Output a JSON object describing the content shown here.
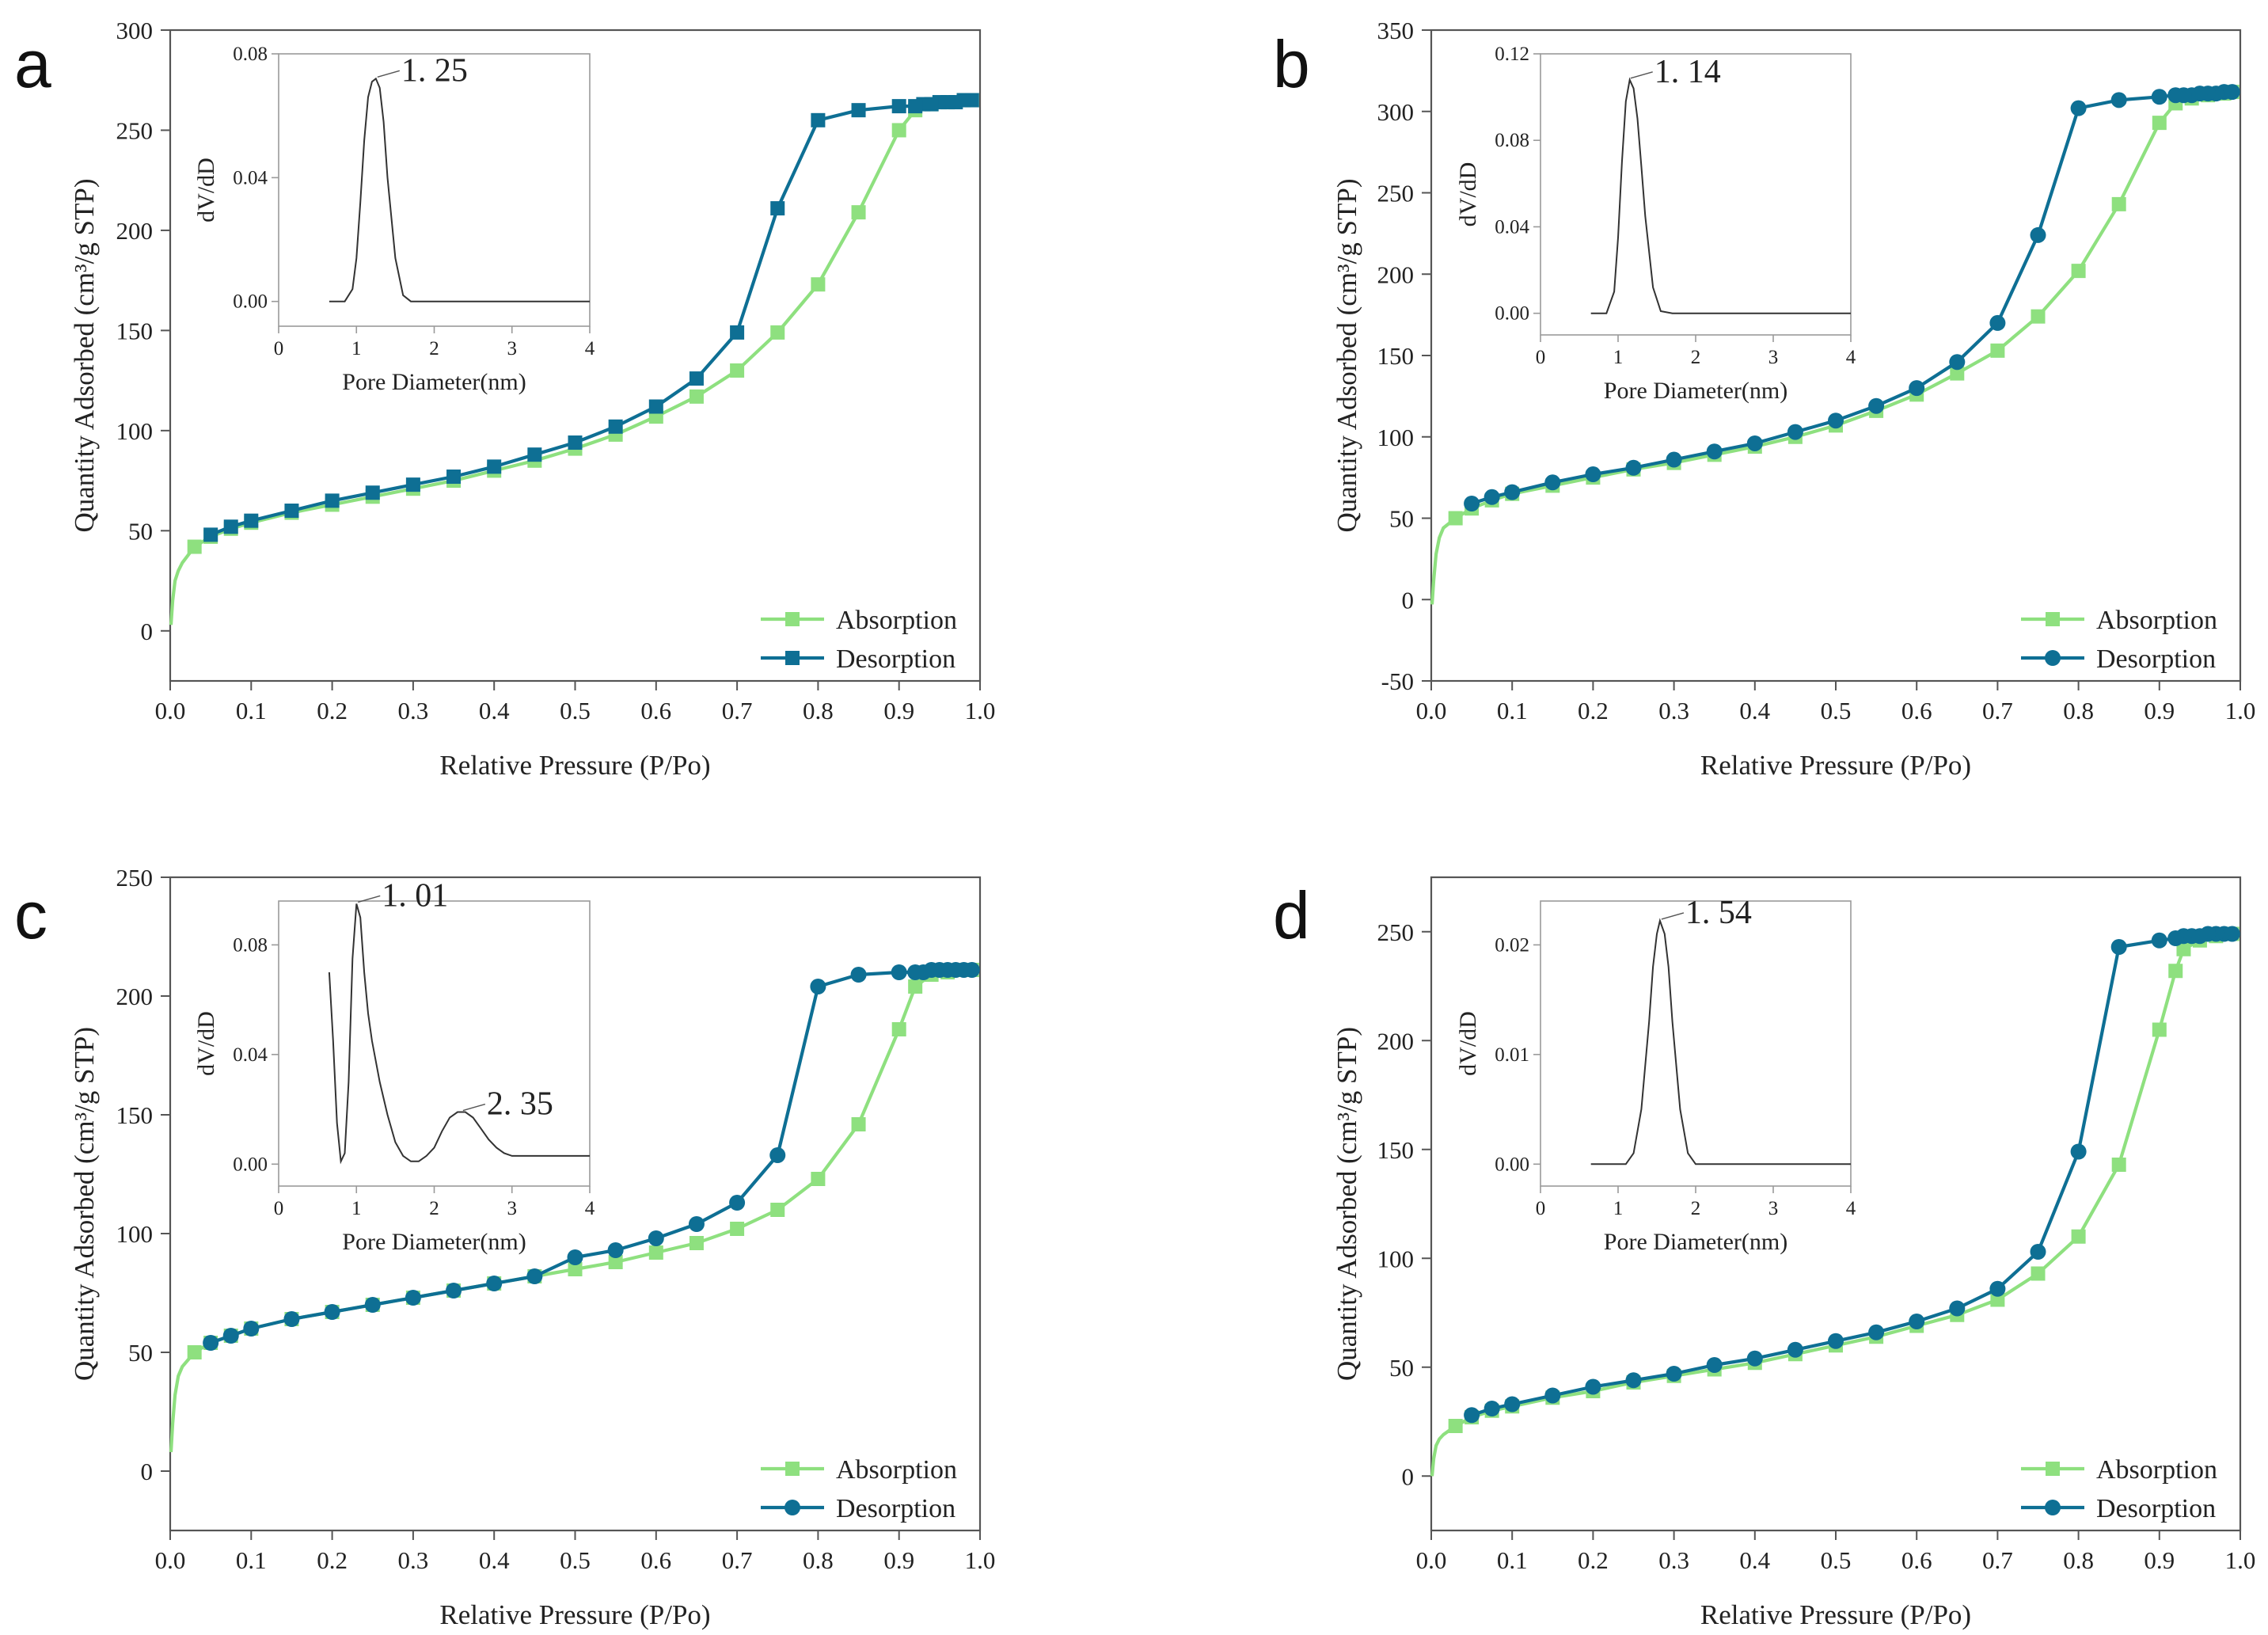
{
  "chart_data": [
    {
      "id": "a",
      "panel_label": "a",
      "type": "line",
      "xlabel": "Relative Pressure (P/Po)",
      "ylabel": "Quantity Adsorbed (cm³/g STP)",
      "xlim": [
        0,
        1.0
      ],
      "ylim": [
        -25,
        300
      ],
      "xticks": [
        "0.0",
        "0.1",
        "0.2",
        "0.3",
        "0.4",
        "0.5",
        "0.6",
        "0.7",
        "0.8",
        "0.9",
        "1.0"
      ],
      "yticks": [
        "0",
        "50",
        "100",
        "150",
        "200",
        "250",
        "300"
      ],
      "legend_position": "bottom-right",
      "desorption_marker": "square",
      "series": [
        {
          "name": "Absorption",
          "color": "#8ee07f",
          "x": [
            0.001,
            0.003,
            0.006,
            0.01,
            0.015,
            0.03,
            0.05,
            0.075,
            0.1,
            0.15,
            0.2,
            0.25,
            0.3,
            0.35,
            0.4,
            0.45,
            0.5,
            0.55,
            0.6,
            0.65,
            0.7,
            0.75,
            0.8,
            0.85,
            0.9,
            0.92,
            0.94,
            0.96,
            0.98,
            0.99
          ],
          "y": [
            3,
            15,
            25,
            30,
            34,
            42,
            47,
            51,
            54,
            59,
            63,
            67,
            71,
            75,
            80,
            85,
            91,
            98,
            107,
            117,
            130,
            149,
            173,
            209,
            250,
            260,
            263,
            264,
            265,
            265
          ]
        },
        {
          "name": "Desorption",
          "color": "#0e6f94",
          "x": [
            0.99,
            0.98,
            0.97,
            0.96,
            0.95,
            0.94,
            0.93,
            0.92,
            0.9,
            0.85,
            0.8,
            0.75,
            0.7,
            0.65,
            0.6,
            0.55,
            0.5,
            0.45,
            0.4,
            0.35,
            0.3,
            0.25,
            0.2,
            0.15,
            0.1,
            0.075,
            0.05
          ],
          "y": [
            265,
            265,
            264,
            264,
            264,
            263,
            263,
            262,
            262,
            260,
            255,
            211,
            149,
            126,
            112,
            102,
            94,
            88,
            82,
            77,
            73,
            69,
            65,
            60,
            55,
            52,
            48
          ]
        }
      ],
      "inset": {
        "xlabel": "Pore Diameter(nm)",
        "ylabel": "dV/dD",
        "xlim": [
          0,
          4
        ],
        "ylim": [
          -0.008,
          0.08
        ],
        "xticks": [
          "0",
          "1",
          "2",
          "3",
          "4"
        ],
        "yticks": [
          "0.00",
          "0.04",
          "0.08"
        ],
        "ytick_values": [
          0,
          0.04,
          0.08
        ],
        "x": [
          0.65,
          0.85,
          0.95,
          1.0,
          1.05,
          1.1,
          1.15,
          1.2,
          1.25,
          1.3,
          1.35,
          1.4,
          1.5,
          1.6,
          1.7,
          2.0,
          3.0,
          4.0
        ],
        "y": [
          0,
          0,
          0.004,
          0.014,
          0.032,
          0.052,
          0.066,
          0.071,
          0.072,
          0.069,
          0.058,
          0.04,
          0.014,
          0.002,
          0,
          0,
          0,
          0
        ],
        "annotations": [
          {
            "text": "1. 25",
            "x": 1.25,
            "y": 0.072
          }
        ]
      }
    },
    {
      "id": "b",
      "panel_label": "b",
      "type": "line",
      "xlabel": "Relative Pressure (P/Po)",
      "ylabel": "Quantity Adsorbed (cm³/g STP)",
      "xlim": [
        0,
        1.0
      ],
      "ylim": [
        -50,
        350
      ],
      "xticks": [
        "0.0",
        "0.1",
        "0.2",
        "0.3",
        "0.4",
        "0.5",
        "0.6",
        "0.7",
        "0.8",
        "0.9",
        "1.0"
      ],
      "yticks": [
        "-50",
        "0",
        "50",
        "100",
        "150",
        "200",
        "250",
        "300",
        "350"
      ],
      "legend_position": "bottom-right",
      "desorption_marker": "circle",
      "series": [
        {
          "name": "Absorption",
          "color": "#8ee07f",
          "x": [
            0.001,
            0.003,
            0.006,
            0.01,
            0.015,
            0.03,
            0.05,
            0.075,
            0.1,
            0.15,
            0.2,
            0.25,
            0.3,
            0.35,
            0.4,
            0.45,
            0.5,
            0.55,
            0.6,
            0.65,
            0.7,
            0.75,
            0.8,
            0.85,
            0.9,
            0.92,
            0.94,
            0.96,
            0.98,
            0.99
          ],
          "y": [
            -3,
            12,
            28,
            38,
            44,
            50,
            56,
            61,
            65,
            70,
            75,
            80,
            84,
            89,
            94,
            100,
            107,
            116,
            126,
            139,
            153,
            174,
            202,
            243,
            293,
            305,
            308,
            310,
            311,
            312
          ]
        },
        {
          "name": "Desorption",
          "color": "#0e6f94",
          "x": [
            0.99,
            0.98,
            0.97,
            0.96,
            0.95,
            0.94,
            0.93,
            0.92,
            0.9,
            0.85,
            0.8,
            0.75,
            0.7,
            0.65,
            0.6,
            0.55,
            0.5,
            0.45,
            0.4,
            0.35,
            0.3,
            0.25,
            0.2,
            0.15,
            0.1,
            0.075,
            0.05
          ],
          "y": [
            312,
            312,
            311,
            311,
            311,
            310,
            310,
            310,
            309,
            307,
            302,
            224,
            170,
            146,
            130,
            119,
            110,
            103,
            96,
            91,
            86,
            81,
            77,
            72,
            66,
            63,
            59
          ]
        }
      ],
      "inset": {
        "xlabel": "Pore Diameter(nm)",
        "ylabel": "dV/dD",
        "xlim": [
          0,
          4
        ],
        "ylim": [
          -0.01,
          0.12
        ],
        "xticks": [
          "0",
          "1",
          "2",
          "3",
          "4"
        ],
        "yticks": [
          "0.00",
          "0.04",
          "0.08",
          "0.12"
        ],
        "ytick_values": [
          0,
          0.04,
          0.08,
          0.12
        ],
        "x": [
          0.65,
          0.85,
          0.95,
          1.0,
          1.05,
          1.1,
          1.15,
          1.2,
          1.25,
          1.3,
          1.35,
          1.45,
          1.55,
          1.7,
          2.0,
          3.0,
          4.0
        ],
        "y": [
          0,
          0,
          0.01,
          0.035,
          0.07,
          0.098,
          0.108,
          0.104,
          0.09,
          0.068,
          0.045,
          0.012,
          0.001,
          0,
          0,
          0,
          0
        ],
        "annotations": [
          {
            "text": "1. 14",
            "x": 1.14,
            "y": 0.108
          }
        ]
      }
    },
    {
      "id": "c",
      "panel_label": "c",
      "type": "line",
      "xlabel": "Relative Pressure (P/Po)",
      "ylabel": "Quantity Adsorbed (cm³/g STP)",
      "xlim": [
        0,
        1.0
      ],
      "ylim": [
        -25,
        250
      ],
      "xticks": [
        "0.0",
        "0.1",
        "0.2",
        "0.3",
        "0.4",
        "0.5",
        "0.6",
        "0.7",
        "0.8",
        "0.9",
        "1.0"
      ],
      "yticks": [
        "0",
        "50",
        "100",
        "150",
        "200",
        "250"
      ],
      "legend_position": "bottom-right",
      "desorption_marker": "circle",
      "series": [
        {
          "name": "Absorption",
          "color": "#8ee07f",
          "x": [
            0.001,
            0.003,
            0.006,
            0.01,
            0.015,
            0.03,
            0.05,
            0.075,
            0.1,
            0.15,
            0.2,
            0.25,
            0.3,
            0.35,
            0.4,
            0.45,
            0.5,
            0.55,
            0.6,
            0.65,
            0.7,
            0.75,
            0.8,
            0.85,
            0.9,
            0.92,
            0.94,
            0.96,
            0.98,
            0.99
          ],
          "y": [
            8,
            20,
            32,
            40,
            44,
            50,
            54,
            57,
            60,
            64,
            67,
            70,
            73,
            76,
            79,
            82,
            85,
            88,
            92,
            96,
            102,
            110,
            123,
            146,
            186,
            204,
            209,
            210,
            211,
            211
          ]
        },
        {
          "name": "Desorption",
          "color": "#0e6f94",
          "x": [
            0.99,
            0.98,
            0.97,
            0.96,
            0.95,
            0.94,
            0.93,
            0.92,
            0.9,
            0.85,
            0.8,
            0.75,
            0.7,
            0.65,
            0.6,
            0.55,
            0.5,
            0.45,
            0.4,
            0.35,
            0.3,
            0.25,
            0.2,
            0.15,
            0.1,
            0.075,
            0.05
          ],
          "y": [
            211,
            211,
            211,
            211,
            211,
            211,
            210,
            210,
            210,
            209,
            204,
            133,
            113,
            104,
            98,
            93,
            90,
            82,
            79,
            76,
            73,
            70,
            67,
            64,
            60,
            57,
            54
          ]
        }
      ],
      "inset": {
        "xlabel": "Pore Diameter(nm)",
        "ylabel": "dV/dD",
        "xlim": [
          0,
          4
        ],
        "ylim": [
          -0.008,
          0.096
        ],
        "xticks": [
          "0",
          "1",
          "2",
          "3",
          "4"
        ],
        "yticks": [
          "0.00",
          "0.04",
          "0.08"
        ],
        "ytick_values": [
          0,
          0.04,
          0.08
        ],
        "x": [
          0.65,
          0.7,
          0.75,
          0.8,
          0.85,
          0.9,
          0.95,
          1.0,
          1.05,
          1.1,
          1.15,
          1.2,
          1.3,
          1.4,
          1.5,
          1.6,
          1.7,
          1.8,
          1.9,
          2.0,
          2.1,
          2.2,
          2.3,
          2.4,
          2.5,
          2.6,
          2.7,
          2.8,
          2.9,
          3.0,
          3.2,
          3.5,
          3.8,
          4.0
        ],
        "y": [
          0.07,
          0.045,
          0.015,
          0.001,
          0.004,
          0.03,
          0.075,
          0.095,
          0.09,
          0.07,
          0.055,
          0.045,
          0.03,
          0.018,
          0.008,
          0.003,
          0.001,
          0.001,
          0.003,
          0.006,
          0.012,
          0.017,
          0.019,
          0.019,
          0.017,
          0.013,
          0.009,
          0.006,
          0.004,
          0.003,
          0.003,
          0.003,
          0.003,
          0.003
        ],
        "annotations": [
          {
            "text": "1. 01",
            "x": 1.0,
            "y": 0.095
          },
          {
            "text": "2. 35",
            "x": 2.35,
            "y": 0.019
          }
        ]
      }
    },
    {
      "id": "d",
      "panel_label": "d",
      "type": "line",
      "xlabel": "Relative Pressure (P/Po)",
      "ylabel": "Quantity Adsorbed (cm³/g STP)",
      "xlim": [
        0,
        1.0
      ],
      "ylim": [
        -25,
        275
      ],
      "xticks": [
        "0.0",
        "0.1",
        "0.2",
        "0.3",
        "0.4",
        "0.5",
        "0.6",
        "0.7",
        "0.8",
        "0.9",
        "1.0"
      ],
      "yticks": [
        "0",
        "50",
        "100",
        "150",
        "200",
        "250"
      ],
      "legend_position": "bottom-right",
      "desorption_marker": "circle",
      "series": [
        {
          "name": "Absorption",
          "color": "#8ee07f",
          "x": [
            0.001,
            0.003,
            0.006,
            0.01,
            0.015,
            0.03,
            0.05,
            0.075,
            0.1,
            0.15,
            0.2,
            0.25,
            0.3,
            0.35,
            0.4,
            0.45,
            0.5,
            0.55,
            0.6,
            0.65,
            0.7,
            0.75,
            0.8,
            0.85,
            0.9,
            0.92,
            0.93,
            0.95,
            0.97,
            0.99
          ],
          "y": [
            0,
            8,
            14,
            17,
            19,
            23,
            27,
            30,
            32,
            36,
            39,
            43,
            46,
            49,
            52,
            56,
            60,
            64,
            69,
            74,
            81,
            93,
            110,
            143,
            205,
            232,
            242,
            246,
            248,
            249
          ]
        },
        {
          "name": "Desorption",
          "color": "#0e6f94",
          "x": [
            0.99,
            0.98,
            0.97,
            0.96,
            0.95,
            0.94,
            0.93,
            0.92,
            0.9,
            0.85,
            0.8,
            0.75,
            0.7,
            0.65,
            0.6,
            0.55,
            0.5,
            0.45,
            0.4,
            0.35,
            0.3,
            0.25,
            0.2,
            0.15,
            0.1,
            0.075,
            0.05
          ],
          "y": [
            249,
            249,
            249,
            249,
            248,
            248,
            248,
            247,
            246,
            243,
            149,
            103,
            86,
            77,
            71,
            66,
            62,
            58,
            54,
            51,
            47,
            44,
            41,
            37,
            33,
            31,
            28
          ]
        }
      ],
      "inset": {
        "xlabel": "Pore Diameter(nm)",
        "ylabel": "dV/dD",
        "xlim": [
          0,
          4
        ],
        "ylim": [
          -0.002,
          0.024
        ],
        "xticks": [
          "0",
          "1",
          "2",
          "3",
          "4"
        ],
        "yticks": [
          "0.00",
          "0.01",
          "0.02"
        ],
        "ytick_values": [
          0,
          0.01,
          0.02
        ],
        "x": [
          0.65,
          1.1,
          1.2,
          1.3,
          1.4,
          1.45,
          1.5,
          1.54,
          1.6,
          1.65,
          1.7,
          1.8,
          1.9,
          2.0,
          2.2,
          3.0,
          4.0
        ],
        "y": [
          0,
          0,
          0.001,
          0.005,
          0.013,
          0.018,
          0.021,
          0.0222,
          0.021,
          0.018,
          0.013,
          0.005,
          0.001,
          0,
          0,
          0,
          0
        ],
        "annotations": [
          {
            "text": "1. 54",
            "x": 1.54,
            "y": 0.0222
          }
        ]
      }
    }
  ]
}
